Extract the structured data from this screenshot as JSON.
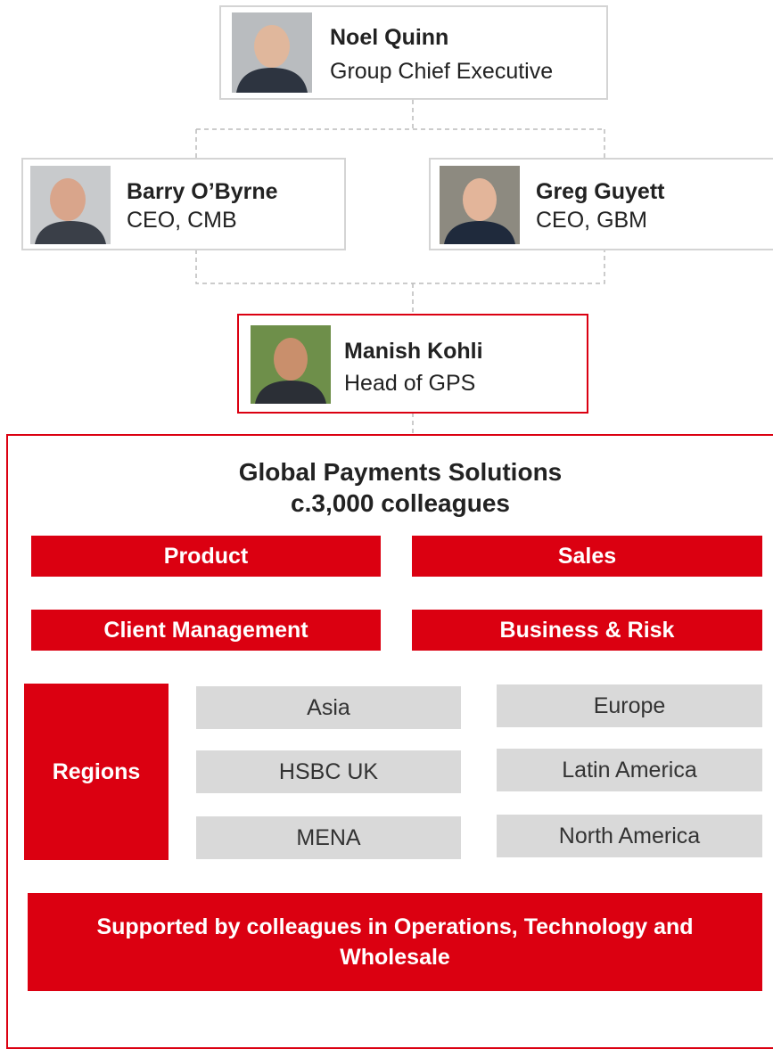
{
  "people": [
    {
      "name": "Noel Quinn",
      "title": "Group Chief Executive"
    },
    {
      "name": "Barry O’Byrne",
      "title": "CEO, CMB"
    },
    {
      "name": "Greg Guyett",
      "title": "CEO, GBM"
    },
    {
      "name": "Manish Kohli",
      "title": "Head of GPS"
    }
  ],
  "unit": {
    "title": "Global Payments Solutions",
    "subtitle": "c.3,000 colleagues"
  },
  "functions": [
    "Product",
    "Sales",
    "Client Management",
    "Business & Risk"
  ],
  "regions": {
    "label": "Regions",
    "items": [
      "Asia",
      "Europe",
      "HSBC UK",
      "Latin America",
      "MENA",
      "North America"
    ]
  },
  "support": "Supported by colleagues in Operations, Technology and Wholesale"
}
